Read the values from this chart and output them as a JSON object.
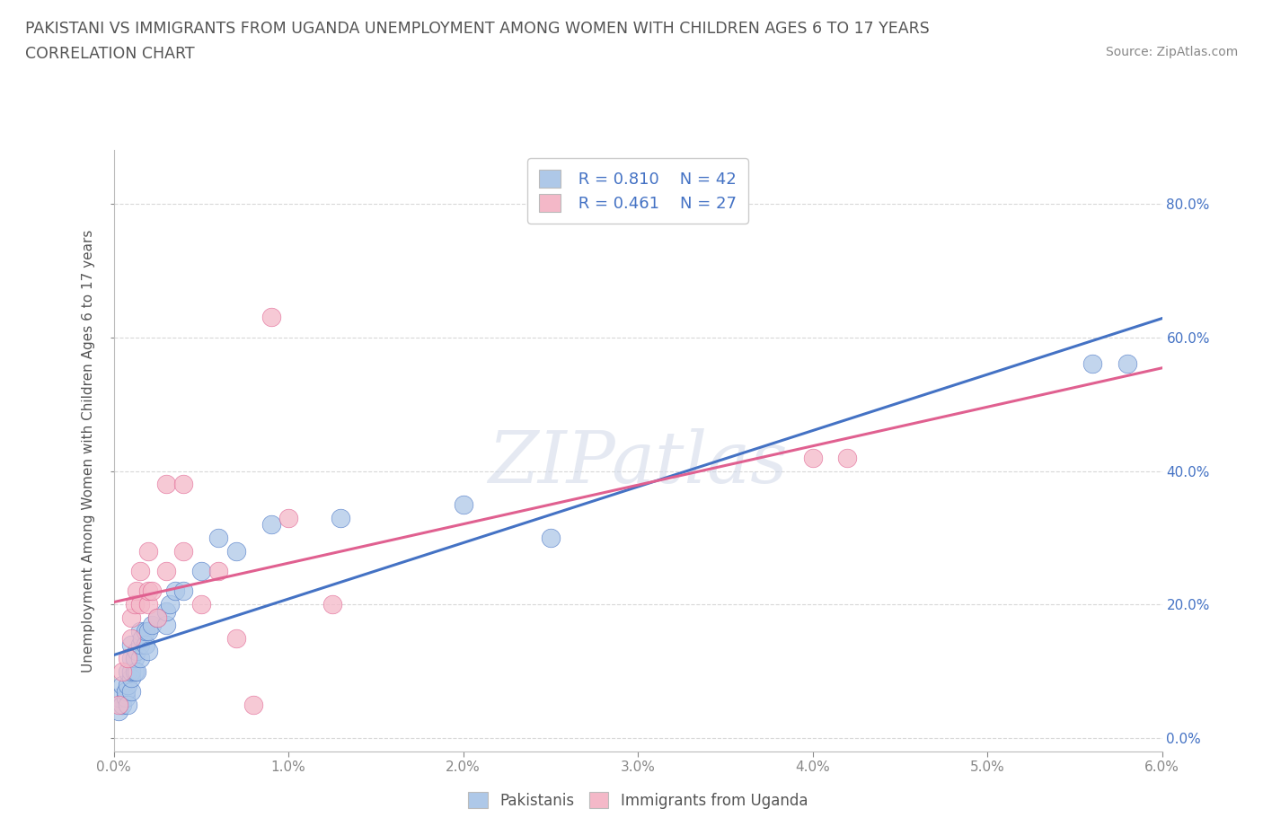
{
  "title_line1": "PAKISTANI VS IMMIGRANTS FROM UGANDA UNEMPLOYMENT AMONG WOMEN WITH CHILDREN AGES 6 TO 17 YEARS",
  "title_line2": "CORRELATION CHART",
  "source_text": "Source: ZipAtlas.com",
  "ylabel": "Unemployment Among Women with Children Ages 6 to 17 years",
  "xlim": [
    0.0,
    0.06
  ],
  "ylim": [
    -0.02,
    0.88
  ],
  "xticks": [
    0.0,
    0.01,
    0.02,
    0.03,
    0.04,
    0.05,
    0.06
  ],
  "yticks": [
    0.0,
    0.2,
    0.4,
    0.6,
    0.8
  ],
  "xticklabels": [
    "0.0%",
    "1.0%",
    "2.0%",
    "3.0%",
    "4.0%",
    "5.0%",
    "6.0%"
  ],
  "yticklabels": [
    "0.0%",
    "20.0%",
    "40.0%",
    "60.0%",
    "80.0%"
  ],
  "watermark": "ZIPatlas",
  "legend_r1": "R = 0.810",
  "legend_n1": "N = 42",
  "legend_r2": "R = 0.461",
  "legend_n2": "N = 27",
  "blue_color": "#aec8e8",
  "pink_color": "#f4b8c8",
  "blue_line_color": "#4472c4",
  "pink_line_color": "#e06090",
  "title_color": "#444444",
  "axis_color": "#bbbbbb",
  "pakistanis_x": [
    0.0003,
    0.0003,
    0.0005,
    0.0005,
    0.0007,
    0.0007,
    0.0008,
    0.0008,
    0.0008,
    0.001,
    0.001,
    0.001,
    0.001,
    0.001,
    0.0012,
    0.0012,
    0.0013,
    0.0013,
    0.0015,
    0.0015,
    0.0015,
    0.0016,
    0.0018,
    0.0018,
    0.002,
    0.002,
    0.0022,
    0.0025,
    0.003,
    0.003,
    0.0032,
    0.0035,
    0.004,
    0.005,
    0.006,
    0.007,
    0.009,
    0.013,
    0.02,
    0.025,
    0.056,
    0.058
  ],
  "pakistanis_y": [
    0.04,
    0.06,
    0.05,
    0.08,
    0.06,
    0.07,
    0.05,
    0.08,
    0.1,
    0.07,
    0.09,
    0.1,
    0.12,
    0.14,
    0.1,
    0.12,
    0.1,
    0.13,
    0.12,
    0.14,
    0.16,
    0.15,
    0.14,
    0.16,
    0.13,
    0.16,
    0.17,
    0.18,
    0.17,
    0.19,
    0.2,
    0.22,
    0.22,
    0.25,
    0.3,
    0.28,
    0.32,
    0.33,
    0.35,
    0.3,
    0.56,
    0.56
  ],
  "uganda_x": [
    0.0003,
    0.0005,
    0.0008,
    0.001,
    0.001,
    0.0012,
    0.0013,
    0.0015,
    0.0015,
    0.002,
    0.002,
    0.002,
    0.0022,
    0.0025,
    0.003,
    0.003,
    0.004,
    0.004,
    0.005,
    0.006,
    0.007,
    0.008,
    0.009,
    0.01,
    0.0125,
    0.04,
    0.042
  ],
  "uganda_y": [
    0.05,
    0.1,
    0.12,
    0.15,
    0.18,
    0.2,
    0.22,
    0.2,
    0.25,
    0.2,
    0.22,
    0.28,
    0.22,
    0.18,
    0.25,
    0.38,
    0.28,
    0.38,
    0.2,
    0.25,
    0.15,
    0.05,
    0.63,
    0.33,
    0.2,
    0.42,
    0.42
  ],
  "background_color": "#ffffff",
  "grid_color": "#d8d8d8"
}
